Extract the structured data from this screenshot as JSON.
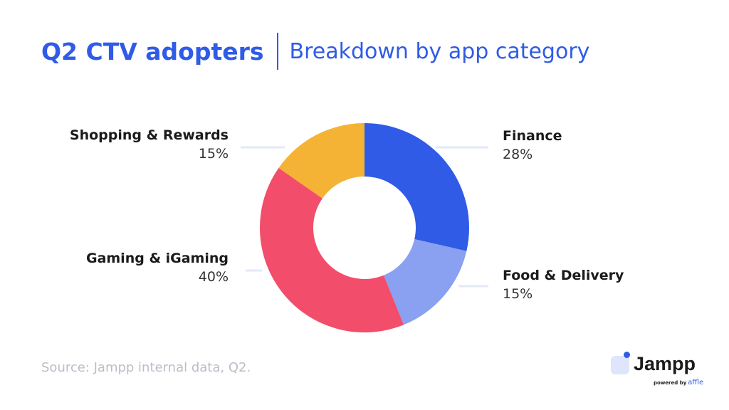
{
  "header": {
    "title": "Q2 CTV adopters",
    "subtitle": "Breakdown by app category"
  },
  "chart_data": {
    "type": "pie",
    "donut": true,
    "categories": [
      "Finance",
      "Food & Delivery",
      "Gaming & iGaming",
      "Shopping & Rewards"
    ],
    "values": [
      28,
      15,
      40,
      15
    ],
    "value_labels": [
      "28%",
      "15%",
      "40%",
      "15%"
    ],
    "colors": [
      "#2f5be6",
      "#8aa0f0",
      "#f24e6b",
      "#f5b335"
    ],
    "leader_line_color": "#e3e8f7",
    "title": "",
    "legend": "none"
  },
  "footer": {
    "source": "Source: Jampp internal data, Q2."
  },
  "logo": {
    "brand": "Jampp",
    "powered_by": "powered by",
    "partner": "affle",
    "accent_color": "#2f5be6"
  }
}
